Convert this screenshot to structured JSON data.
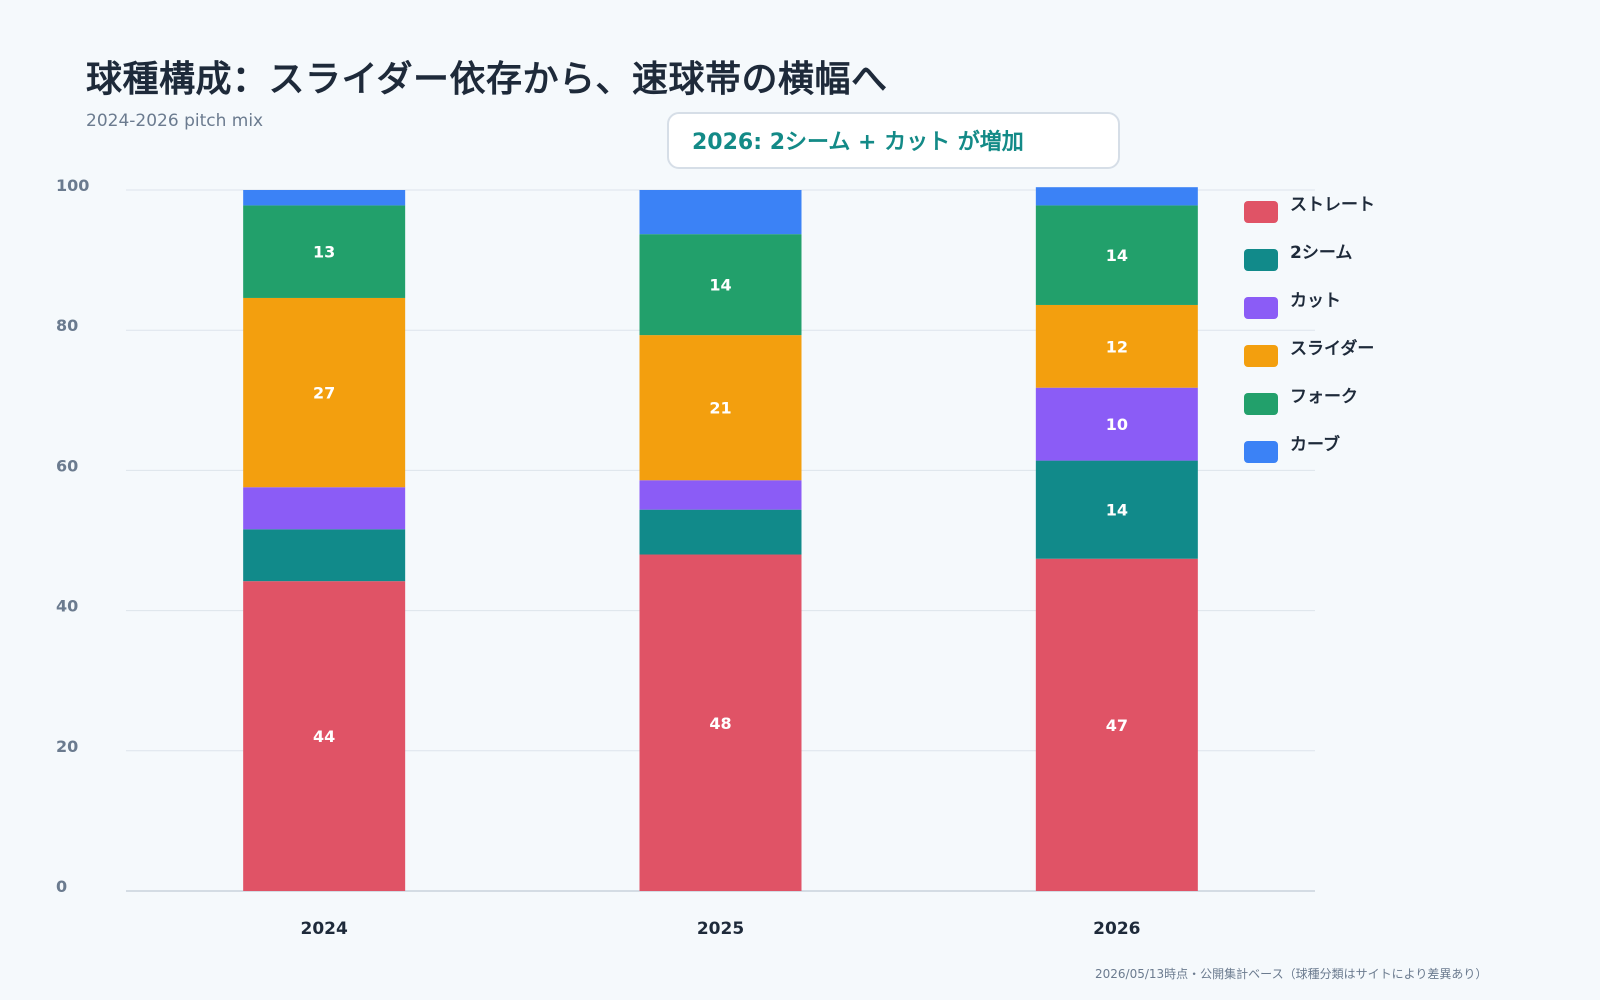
{
  "title": "球種構成：スライダー依存から、速球帯の横幅へ",
  "subtitle": "2024-2026 pitch mix",
  "callout": "2026: 2シーム + カット が増加",
  "footnote": "2026/05/13時点・公開集計ベース（球種分類はサイトにより差異あり）",
  "chart_data": {
    "type": "bar",
    "stacked": true,
    "categories": [
      "2024",
      "2025",
      "2026"
    ],
    "ylim": [
      0,
      100
    ],
    "yticks": [
      0,
      20,
      40,
      60,
      80,
      100
    ],
    "grid": true,
    "legend_position": "right",
    "series": [
      {
        "name": "ストレート",
        "color": "#e05366",
        "values": [
          44.2,
          48.0,
          47.4
        ],
        "labels": [
          "44",
          "48",
          "47"
        ]
      },
      {
        "name": "2シーム",
        "color": "#118a8a",
        "values": [
          7.4,
          6.4,
          14.0
        ],
        "labels": [
          "",
          "",
          "14"
        ]
      },
      {
        "name": "カット",
        "color": "#8b5cf6",
        "values": [
          6.0,
          4.2,
          10.4
        ],
        "labels": [
          "",
          "",
          "10"
        ]
      },
      {
        "name": "スライダー",
        "color": "#f39f0e",
        "values": [
          27.0,
          20.7,
          11.8
        ],
        "labels": [
          "27",
          "21",
          "12"
        ]
      },
      {
        "name": "フォーク",
        "color": "#22a06b",
        "values": [
          13.2,
          14.4,
          14.2
        ],
        "labels": [
          "13",
          "14",
          "14"
        ]
      },
      {
        "name": "カーブ",
        "color": "#3b82f6",
        "values": [
          2.2,
          6.3,
          2.6
        ],
        "labels": [
          "",
          "",
          ""
        ]
      }
    ]
  }
}
